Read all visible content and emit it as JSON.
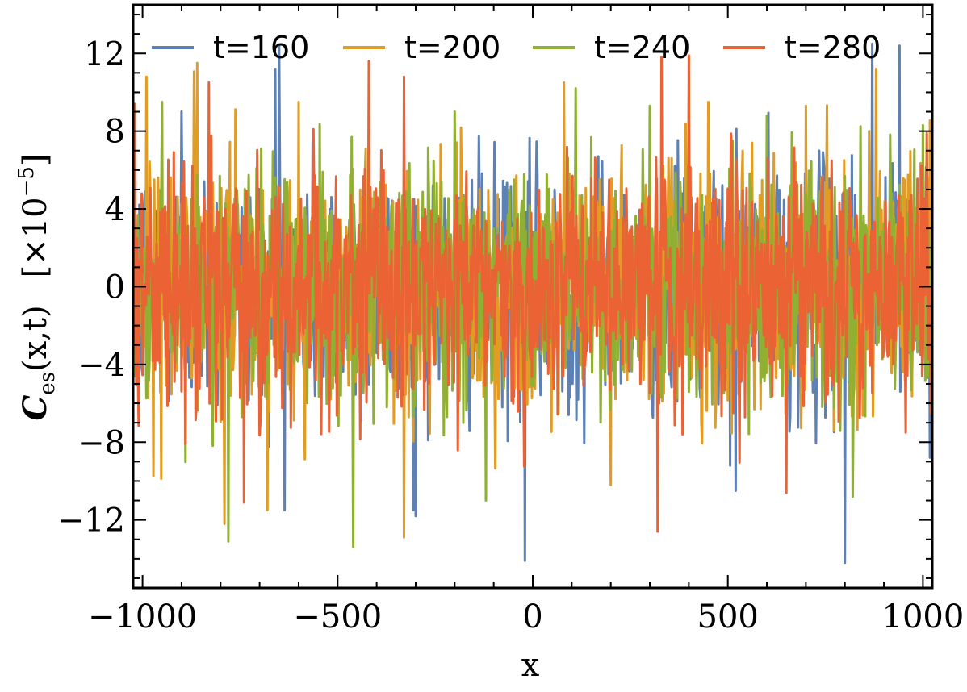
{
  "chart_data": {
    "type": "line",
    "title": "",
    "xlabel": "x",
    "ylabel": {
      "symbol": "C",
      "subscript": "es",
      "args": "(x,t)",
      "multiplier_text": "[×10",
      "multiplier_exponent": "−5",
      "multiplier_close": "]"
    },
    "xlim": [
      -1024,
      1024
    ],
    "ylim": [
      -15.5,
      14.5
    ],
    "y_unit_scale": "1e-5",
    "xticks": [
      -1000,
      -500,
      0,
      500,
      1000
    ],
    "xtick_labels": [
      "−1000",
      "−500",
      "0",
      "500",
      "1000"
    ],
    "yticks": [
      -12,
      -8,
      -4,
      0,
      4,
      8,
      12
    ],
    "ytick_labels": [
      "−12",
      "−8",
      "−4",
      "0",
      "4",
      "8",
      "12"
    ],
    "grid": false,
    "legend_position": "top",
    "x_sampling": {
      "start": -1024,
      "end": 1024,
      "step": 2
    },
    "series": [
      {
        "name": "t=160",
        "color": "#5e81b5",
        "rms": 3.2,
        "peaks": [
          [
            -650,
            12.4
          ],
          [
            -660,
            11.2
          ],
          [
            520,
            -10.5
          ],
          [
            800,
            -14.2
          ],
          [
            -20,
            -14.1
          ],
          [
            870,
            12.5
          ],
          [
            940,
            12.4
          ],
          [
            -300,
            -11.8
          ],
          [
            400,
            9.8
          ],
          [
            -900,
            9.0
          ]
        ]
      },
      {
        "name": "t=200",
        "color": "#e19c24",
        "rms": 3.2,
        "peaks": [
          [
            -990,
            10.8
          ],
          [
            -860,
            11.5
          ],
          [
            -790,
            -12.2
          ],
          [
            -330,
            -12.9
          ],
          [
            80,
            10.5
          ],
          [
            450,
            9.5
          ],
          [
            880,
            11.2
          ],
          [
            -600,
            9.5
          ],
          [
            200,
            -10.2
          ],
          [
            700,
            9.3
          ]
        ]
      },
      {
        "name": "t=240",
        "color": "#8fb032",
        "rms": 3.2,
        "peaks": [
          [
            -780,
            -13.1
          ],
          [
            -460,
            -13.4
          ],
          [
            110,
            10.2
          ],
          [
            -120,
            -11.0
          ],
          [
            820,
            -10.8
          ],
          [
            600,
            8.8
          ],
          [
            -950,
            9.5
          ],
          [
            300,
            9.3
          ],
          [
            1000,
            8.3
          ],
          [
            -200,
            9.0
          ]
        ]
      },
      {
        "name": "t=280",
        "color": "#eb6235",
        "rms": 3.0,
        "peaks": [
          [
            -1020,
            9.4
          ],
          [
            -420,
            11.6
          ],
          [
            -330,
            10.8
          ],
          [
            320,
            -12.6
          ],
          [
            330,
            11.8
          ],
          [
            400,
            11.9
          ],
          [
            -740,
            -11.1
          ],
          [
            -830,
            10.5
          ],
          [
            650,
            -10.6
          ],
          [
            1010,
            7.9
          ]
        ]
      }
    ]
  }
}
